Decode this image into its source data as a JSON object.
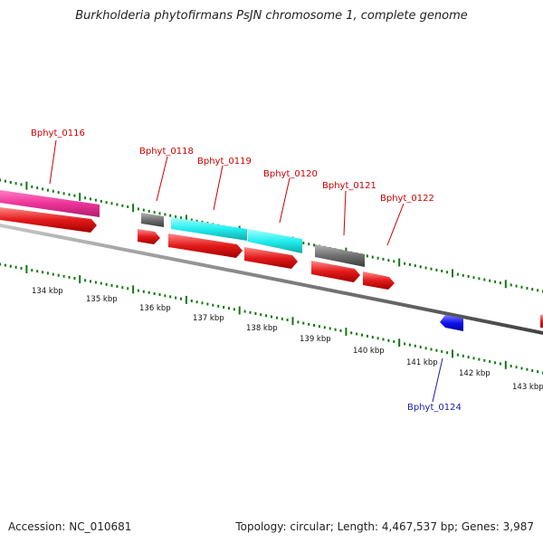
{
  "title": "Burkholderia phytofirmans PsJN chromosome 1, complete genome",
  "footer": {
    "accession": "Accession: NC_010681",
    "stats": "Topology: circular; Length: 4,467,537 bp; Genes: 3,987"
  },
  "colors": {
    "backbone": "#808080",
    "tick": "#117711",
    "forward_cds": "#e31a1a",
    "label_forward": "#cc0000",
    "label_reverse": "#1a1aaa",
    "reverse_cds": "#1010ee",
    "gene_pink": "#ee3399",
    "gene_cyan": "#22eeee",
    "gene_gray": "#707070"
  },
  "scale": {
    "tick_labels": [
      "134 kbp",
      "135 kbp",
      "136 kbp",
      "137 kbp",
      "138 kbp",
      "139 kbp",
      "140 kbp",
      "141 kbp",
      "142 kbp",
      "143 kbp"
    ]
  },
  "gene_labels": [
    {
      "text": "Bphyt_0116",
      "strand": "forward"
    },
    {
      "text": "Bphyt_0118",
      "strand": "forward"
    },
    {
      "text": "Bphyt_0119",
      "strand": "forward"
    },
    {
      "text": "Bphyt_0120",
      "strand": "forward"
    },
    {
      "text": "Bphyt_0121",
      "strand": "forward"
    },
    {
      "text": "Bphyt_0122",
      "strand": "forward"
    },
    {
      "text": "Bphyt_0124",
      "strand": "reverse"
    }
  ]
}
